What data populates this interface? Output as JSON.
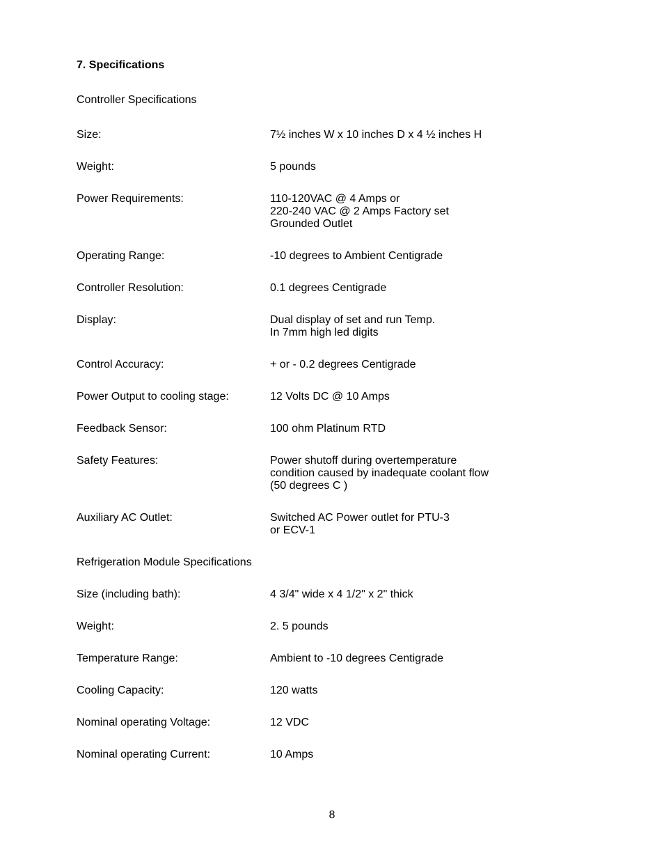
{
  "title": "7. Specifications",
  "pageNumber": "8",
  "sections": [
    {
      "heading": "Controller Specifications",
      "rows": [
        {
          "label": "Size:",
          "lines": [
            "7½ inches W x 10 inches D x 4 ½ inches H"
          ]
        },
        {
          "label": "Weight:",
          "lines": [
            "5 pounds"
          ]
        },
        {
          "label": "Power Requirements:",
          "lines": [
            "110-120VAC @ 4 Amps or",
            "220-240 VAC @ 2 Amps Factory set",
            "Grounded Outlet"
          ]
        },
        {
          "label": "Operating Range:",
          "lines": [
            " -10 degrees to Ambient Centigrade"
          ]
        },
        {
          "label": "Controller Resolution:",
          "lines": [
            "0.1 degrees Centigrade"
          ]
        },
        {
          "label": "Display:",
          "lines": [
            "Dual display of set and run Temp.",
            "In 7mm high led digits"
          ]
        },
        {
          "label": "Control Accuracy:",
          "lines": [
            "+ or - 0.2 degrees Centigrade"
          ]
        },
        {
          "label": "Power Output to cooling stage:",
          "lines": [
            "12 Volts DC @ 10 Amps"
          ]
        },
        {
          "label": "Feedback Sensor:",
          "lines": [
            "100 ohm Platinum RTD"
          ]
        },
        {
          "label": "Safety Features:",
          "lines": [
            "Power shutoff during overtemperature",
            "condition caused by inadequate coolant flow",
            "(50 degrees C )"
          ]
        },
        {
          "label": "Auxiliary AC Outlet:",
          "lines": [
            "Switched AC Power outlet for PTU-3",
            "or ECV-1"
          ]
        }
      ]
    },
    {
      "heading": "Refrigeration Module Specifications",
      "rows": [
        {
          "label": "Size (including bath):",
          "lines": [
            "4 3/4\" wide x 4 1/2\" x 2\" thick"
          ]
        },
        {
          "label": "Weight:",
          "lines": [
            "2. 5 pounds"
          ]
        },
        {
          "label": "Temperature Range:",
          "lines": [
            "Ambient to -10 degrees Centigrade"
          ]
        },
        {
          "label": "Cooling Capacity:",
          "lines": [
            "120 watts"
          ]
        },
        {
          "label": "Nominal operating Voltage:",
          "lines": [
            "12 VDC"
          ]
        },
        {
          "label": "Nominal operating Current:",
          "lines": [
            "10 Amps"
          ]
        }
      ]
    }
  ]
}
